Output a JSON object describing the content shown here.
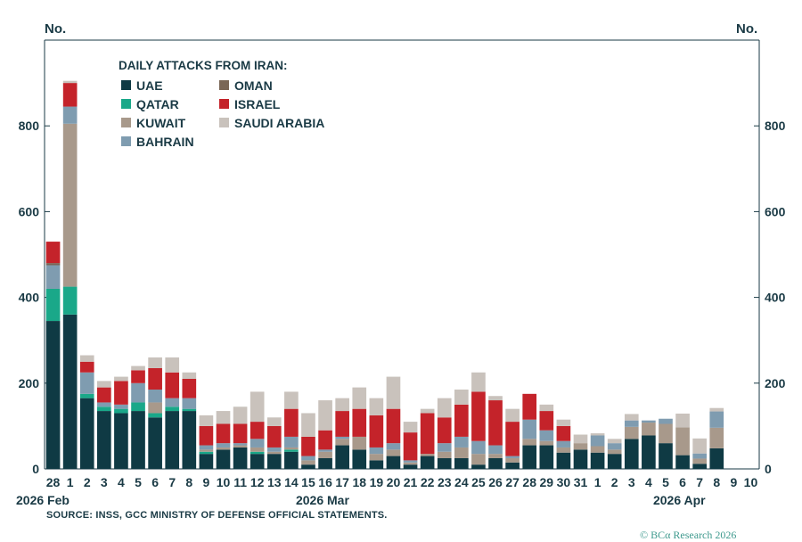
{
  "ylabel_left": "No.",
  "ylabel_right": "No.",
  "source": "SOURCE: INSS, GCC MINISTRY OF DEFENSE OFFICIAL STATEMENTS.",
  "credit": "© BCα Research 2026",
  "colors": {
    "UAE": "#0f3a44",
    "QATAR": "#1aa889",
    "KUWAIT": "#a8998b",
    "BAHRAIN": "#7f9cb0",
    "OMAN": "#7a6656",
    "ISRAEL": "#c4232a",
    "SAUDI ARABIA": "#c9c2bc"
  },
  "chart_data": {
    "type": "bar",
    "stacked": true,
    "title": "DAILY ATTACKS FROM IRAN:",
    "ylim": [
      0,
      1000
    ],
    "yticks": [
      0,
      200,
      400,
      600,
      800
    ],
    "grid": false,
    "legend_position": "top-left",
    "categories": [
      "28",
      "1",
      "2",
      "3",
      "4",
      "5",
      "6",
      "7",
      "8",
      "9",
      "10",
      "11",
      "12",
      "13",
      "14",
      "15",
      "16",
      "17",
      "18",
      "19",
      "20",
      "21",
      "22",
      "23",
      "24",
      "25",
      "26",
      "27",
      "28",
      "29",
      "30",
      "31",
      "1",
      "2",
      "3",
      "4",
      "5",
      "6",
      "7",
      "8",
      "9",
      "10"
    ],
    "group_labels": [
      {
        "label": "2026 Feb",
        "index": 0
      },
      {
        "label": "2026 Mar",
        "index": 15
      },
      {
        "label": "2026 Apr",
        "index": 36
      }
    ],
    "series": [
      {
        "name": "UAE",
        "values": [
          345,
          360,
          165,
          135,
          130,
          135,
          120,
          135,
          135,
          35,
          45,
          50,
          35,
          35,
          40,
          10,
          25,
          55,
          45,
          20,
          30,
          10,
          30,
          25,
          25,
          10,
          25,
          15,
          55,
          55,
          38,
          45,
          38,
          35,
          70,
          78,
          60,
          32,
          12,
          48,
          0,
          0
        ]
      },
      {
        "name": "QATAR",
        "values": [
          75,
          65,
          10,
          10,
          10,
          20,
          10,
          10,
          5,
          5,
          0,
          0,
          5,
          0,
          5,
          0,
          0,
          0,
          0,
          0,
          0,
          0,
          0,
          0,
          0,
          0,
          0,
          0,
          0,
          0,
          0,
          0,
          0,
          0,
          0,
          0,
          0,
          0,
          0,
          0,
          0,
          0
        ]
      },
      {
        "name": "KUWAIT",
        "values": [
          0,
          380,
          0,
          0,
          0,
          0,
          25,
          0,
          0,
          5,
          5,
          5,
          10,
          5,
          5,
          10,
          15,
          15,
          30,
          15,
          15,
          5,
          5,
          15,
          25,
          25,
          10,
          10,
          15,
          10,
          12,
          15,
          15,
          10,
          28,
          30,
          45,
          65,
          12,
          48,
          0,
          0
        ]
      },
      {
        "name": "BAHRAIN",
        "values": [
          55,
          40,
          50,
          10,
          10,
          45,
          30,
          20,
          25,
          10,
          10,
          5,
          20,
          10,
          25,
          10,
          5,
          5,
          0,
          15,
          15,
          5,
          0,
          20,
          25,
          30,
          20,
          5,
          45,
          25,
          15,
          0,
          25,
          15,
          15,
          5,
          12,
          0,
          12,
          38,
          0,
          0
        ]
      },
      {
        "name": "OMAN",
        "values": [
          5,
          0,
          0,
          0,
          0,
          0,
          0,
          0,
          0,
          0,
          0,
          0,
          0,
          0,
          0,
          0,
          0,
          0,
          0,
          0,
          0,
          0,
          0,
          0,
          0,
          0,
          0,
          0,
          0,
          0,
          0,
          0,
          0,
          0,
          0,
          0,
          0,
          0,
          0,
          0,
          0,
          0
        ]
      },
      {
        "name": "ISRAEL",
        "values": [
          50,
          55,
          25,
          35,
          55,
          30,
          50,
          60,
          45,
          45,
          45,
          45,
          40,
          50,
          65,
          45,
          45,
          60,
          65,
          75,
          80,
          65,
          95,
          60,
          75,
          115,
          105,
          80,
          60,
          45,
          35,
          0,
          0,
          0,
          0,
          0,
          0,
          0,
          0,
          0,
          0,
          0
        ]
      },
      {
        "name": "SAUDI ARABIA",
        "values": [
          0,
          5,
          15,
          15,
          10,
          10,
          25,
          35,
          15,
          25,
          30,
          40,
          70,
          20,
          40,
          55,
          70,
          30,
          50,
          40,
          75,
          25,
          10,
          45,
          35,
          45,
          10,
          30,
          0,
          15,
          15,
          20,
          5,
          10,
          15,
          0,
          0,
          32,
          35,
          8,
          0,
          0
        ]
      }
    ]
  }
}
